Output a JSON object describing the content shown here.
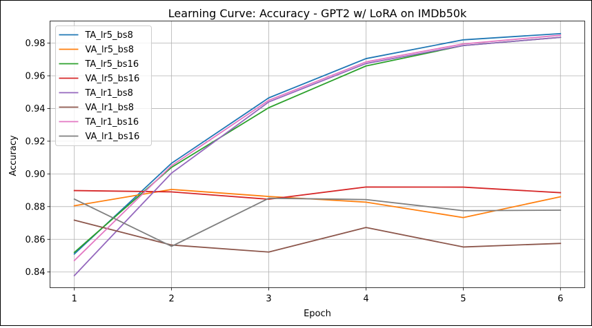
{
  "chart_data": {
    "type": "line",
    "title": "Learning Curve: Accuracy - GPT2 w/ LoRA on IMDb50k",
    "xlabel": "Epoch",
    "ylabel": "Accuracy",
    "x": [
      1,
      2,
      3,
      4,
      5,
      6
    ],
    "xticks": [
      "1",
      "2",
      "3",
      "4",
      "5",
      "6"
    ],
    "yticks": [
      "0.84",
      "0.86",
      "0.88",
      "0.90",
      "0.92",
      "0.94",
      "0.96",
      "0.98"
    ],
    "xlim": [
      0.75,
      6.25
    ],
    "ylim": [
      0.8304,
      0.9935
    ],
    "grid": true,
    "legend_position": "top-left",
    "series": [
      {
        "name": "TA_lr5_bs8",
        "color": "#1f77b4",
        "values": [
          0.851,
          0.9065,
          0.9465,
          0.9705,
          0.982,
          0.9858
        ]
      },
      {
        "name": "VA_lr5_bs8",
        "color": "#ff7f0e",
        "values": [
          0.8805,
          0.8905,
          0.8862,
          0.8827,
          0.8733,
          0.886
        ]
      },
      {
        "name": "TA_lr5_bs16",
        "color": "#2ca02c",
        "values": [
          0.852,
          0.904,
          0.9405,
          0.966,
          0.9785,
          0.9835
        ]
      },
      {
        "name": "VA_lr5_bs16",
        "color": "#d62728",
        "values": [
          0.8898,
          0.889,
          0.8845,
          0.892,
          0.8919,
          0.8885
        ]
      },
      {
        "name": "TA_lr1_bs8",
        "color": "#9467bd",
        "values": [
          0.8378,
          0.9005,
          0.944,
          0.9675,
          0.9785,
          0.9835
        ]
      },
      {
        "name": "VA_lr1_bs8",
        "color": "#8c564b",
        "values": [
          0.8717,
          0.8565,
          0.8522,
          0.8672,
          0.8553,
          0.8575
        ]
      },
      {
        "name": "TA_lr1_bs16",
        "color": "#e377c2",
        "values": [
          0.847,
          0.905,
          0.945,
          0.9685,
          0.9795,
          0.9848
        ]
      },
      {
        "name": "VA_lr1_bs16",
        "color": "#7f7f7f",
        "values": [
          0.8846,
          0.8557,
          0.8851,
          0.8843,
          0.8775,
          0.8778
        ]
      }
    ]
  }
}
